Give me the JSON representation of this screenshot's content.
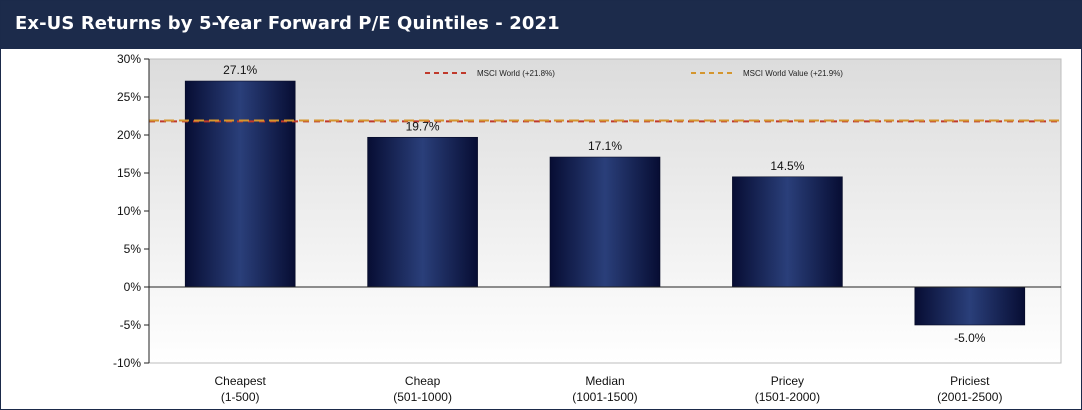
{
  "title": "Ex-US Returns by 5-Year Forward P/E Quintiles - 2021",
  "colors": {
    "title_bar": "#1c2b4b",
    "bar_dark": "#070d33",
    "bar_light": "#2a3f7a",
    "msci_world": "#c0392b",
    "msci_world_value": "#d4962f"
  },
  "chart_data": {
    "type": "bar",
    "title": "",
    "xlabel": "",
    "ylabel": "",
    "categories": [
      [
        "Cheapest",
        "(1-500)"
      ],
      [
        "Cheap",
        "(501-1000)"
      ],
      [
        "Median",
        "(1001-1500)"
      ],
      [
        "Pricey",
        "(1501-2000)"
      ],
      [
        "Priciest",
        "(2001-2500)"
      ]
    ],
    "values": [
      27.1,
      19.7,
      17.1,
      14.5,
      -5.0
    ],
    "value_labels": [
      "27.1%",
      "19.7%",
      "17.1%",
      "14.5%",
      "-5.0%"
    ],
    "ylim": [
      -10,
      30
    ],
    "yticks": [
      30,
      25,
      20,
      15,
      10,
      5,
      0,
      -5,
      -10
    ],
    "ytick_labels": [
      "30%",
      "25%",
      "20%",
      "15%",
      "10%",
      "5%",
      "0%",
      "-5%",
      "-10%"
    ],
    "reference_lines": [
      {
        "name": "MSCI World (+21.8%)",
        "value": 21.8,
        "style": "dashed",
        "color": "#c0392b"
      },
      {
        "name": "MSCI World Value (+21.9%)",
        "value": 21.9,
        "style": "dashed",
        "color": "#d4962f"
      }
    ],
    "legend_position": "top",
    "grid": false
  }
}
